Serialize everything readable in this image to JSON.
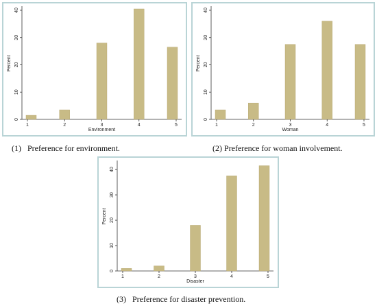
{
  "chart_data": [
    {
      "type": "bar",
      "categories": [
        "1",
        "2",
        "3",
        "4",
        "5"
      ],
      "values": [
        1.5,
        3.5,
        28,
        40.5,
        26.5
      ],
      "xlabel": "Environment",
      "ylabel": "Percent",
      "ylim": [
        0,
        41
      ],
      "yticks": [
        0,
        10,
        20,
        30,
        40
      ],
      "grid": false,
      "bar_color": "#c8bb86",
      "caption": "(1)   Preference for environment."
    },
    {
      "type": "bar",
      "categories": [
        "1",
        "2",
        "3",
        "4",
        "5"
      ],
      "values": [
        3.5,
        6,
        27.5,
        36,
        27.5
      ],
      "xlabel": "Woman",
      "ylabel": "Percent",
      "ylim": [
        0,
        41
      ],
      "yticks": [
        0,
        10,
        20,
        30,
        40
      ],
      "grid": false,
      "bar_color": "#c8bb86",
      "caption": "(2) Preference for woman involvement."
    },
    {
      "type": "bar",
      "categories": [
        "1",
        "2",
        "3",
        "4",
        "5"
      ],
      "values": [
        1,
        2,
        18,
        37.5,
        41.5
      ],
      "xlabel": "Disaster",
      "ylabel": "Percent",
      "ylim": [
        0,
        43
      ],
      "yticks": [
        0,
        10,
        20,
        30,
        40
      ],
      "grid": false,
      "bar_color": "#c8bb86",
      "caption": "(3)   Preference for disaster prevention."
    }
  ],
  "colors": {
    "panel_border": "#b9d4d6",
    "bar_fill": "#c8bb86",
    "bar_edge": "#b3a46c"
  }
}
